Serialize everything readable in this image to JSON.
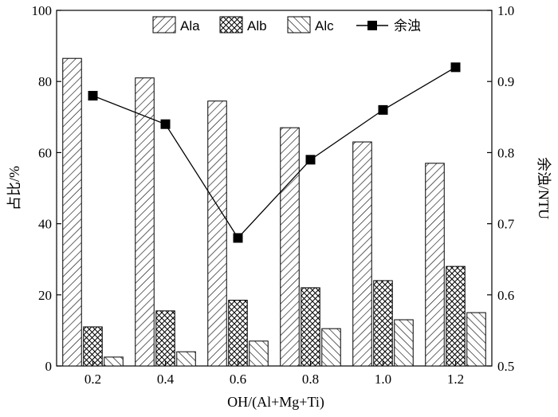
{
  "chart_data": {
    "type": "bar",
    "categories": [
      "0.2",
      "0.4",
      "0.6",
      "0.8",
      "1.0",
      "1.2"
    ],
    "xlabel": "OH/(Al+Mg+Ti)",
    "ylabel_left": "占比/%",
    "ylabel_right": "余浊/NTU",
    "ylim_left": [
      0,
      100
    ],
    "ylim_right": [
      0.5,
      1.0
    ],
    "yticks_left": [
      "0",
      "20",
      "40",
      "60",
      "80",
      "100"
    ],
    "yticks_right": [
      "0.5",
      "0.6",
      "0.7",
      "0.8",
      "0.9",
      "1.0"
    ],
    "legend_position": "top",
    "grid": false,
    "series": [
      {
        "name": "Ala",
        "kind": "bar",
        "hatch": "diagonal-forward",
        "values": [
          86.5,
          81,
          74.5,
          67,
          63,
          57
        ]
      },
      {
        "name": "Alb",
        "kind": "bar",
        "hatch": "crosshatch",
        "values": [
          11,
          15.5,
          18.5,
          22,
          24,
          28
        ]
      },
      {
        "name": "Alc",
        "kind": "bar",
        "hatch": "diagonal-backward",
        "values": [
          2.5,
          4,
          7,
          10.5,
          13,
          15
        ]
      },
      {
        "name": "余浊",
        "kind": "line",
        "marker": "square",
        "axis": "right",
        "values": [
          0.88,
          0.84,
          0.68,
          0.79,
          0.86,
          0.92
        ]
      }
    ]
  }
}
